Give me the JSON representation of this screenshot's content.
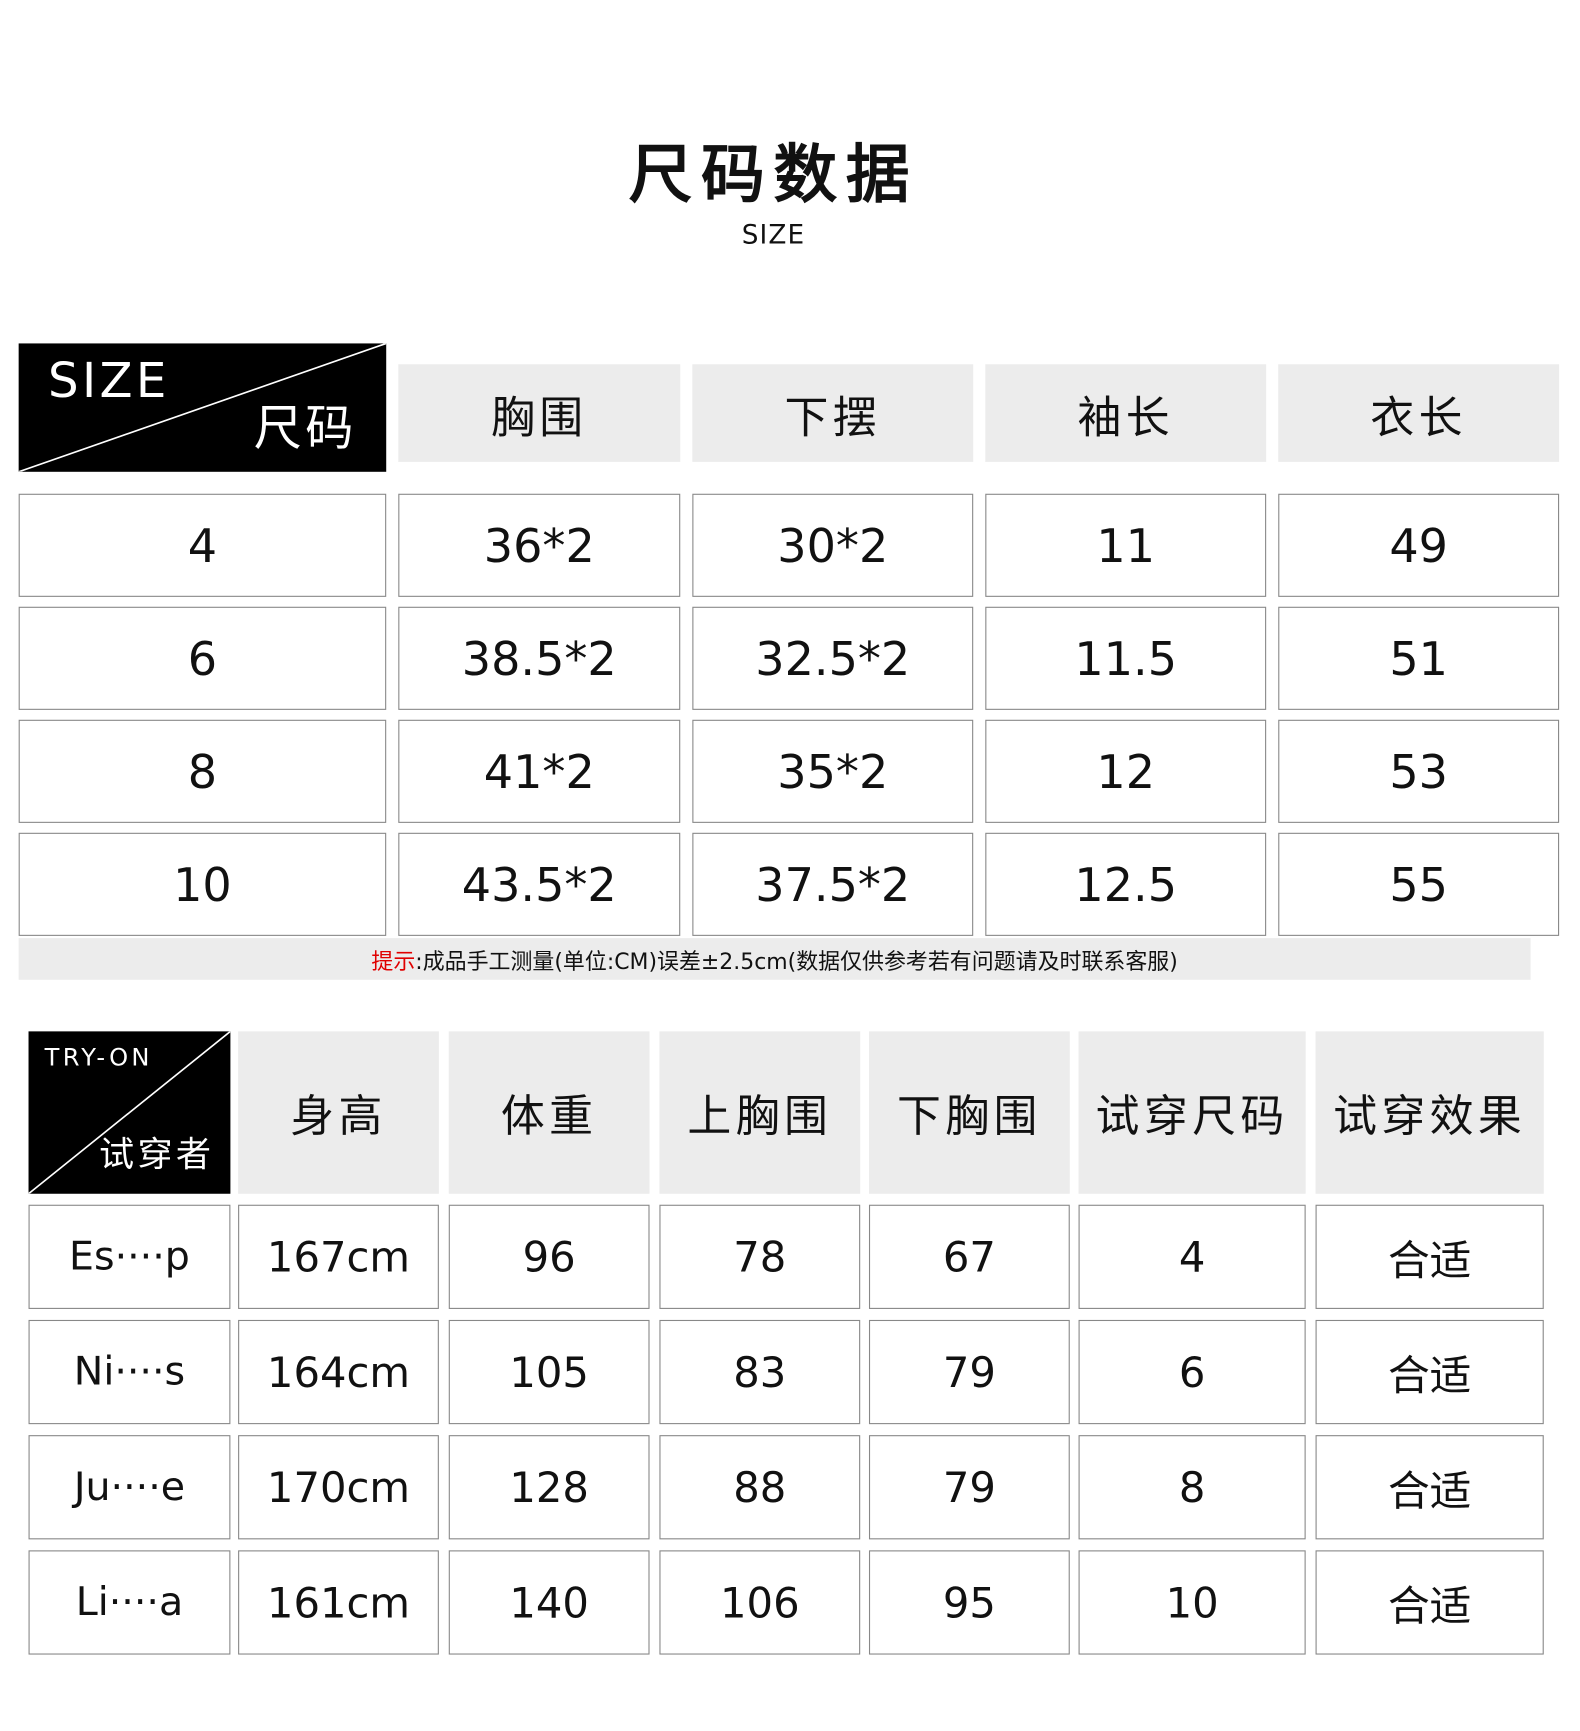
{
  "header": {
    "title": "尺码数据",
    "subtitle": "SIZE"
  },
  "size_table": {
    "corner_top": "SIZE",
    "corner_bottom": "尺码",
    "columns": [
      "胸围",
      "下摆",
      "袖长",
      "衣长"
    ],
    "rows": [
      {
        "size": "4",
        "values": [
          "36*2",
          "30*2",
          "11",
          "49"
        ]
      },
      {
        "size": "6",
        "values": [
          "38.5*2",
          "32.5*2",
          "11.5",
          "51"
        ]
      },
      {
        "size": "8",
        "values": [
          "41*2",
          "35*2",
          "12",
          "53"
        ]
      },
      {
        "size": "10",
        "values": [
          "43.5*2",
          "37.5*2",
          "12.5",
          "55"
        ]
      }
    ],
    "note_label": "提示",
    "note_text": ":成品手工测量(单位:CM)误差±2.5cm(数据仅供参考若有问题请及时联系客服)"
  },
  "tryon_table": {
    "corner_top": "TRY-ON",
    "corner_bottom": "试穿者",
    "columns": [
      "身高",
      "体重",
      "上胸围",
      "下胸围",
      "试穿尺码",
      "试穿效果"
    ],
    "rows": [
      {
        "name": "Es····p",
        "values": [
          "167cm",
          "96",
          "78",
          "67",
          "4",
          "合适"
        ]
      },
      {
        "name": "Ni····s",
        "values": [
          "164cm",
          "105",
          "83",
          "79",
          "6",
          "合适"
        ]
      },
      {
        "name": "Ju····e",
        "values": [
          "170cm",
          "128",
          "88",
          "79",
          "8",
          "合适"
        ]
      },
      {
        "name": "Li····a",
        "values": [
          "161cm",
          "140",
          "106",
          "95",
          "10",
          "合适"
        ]
      }
    ]
  },
  "colors": {
    "header_bg": "#ececec",
    "corner_bg": "#000000",
    "note_label": "#e00000",
    "border": "#888888"
  }
}
